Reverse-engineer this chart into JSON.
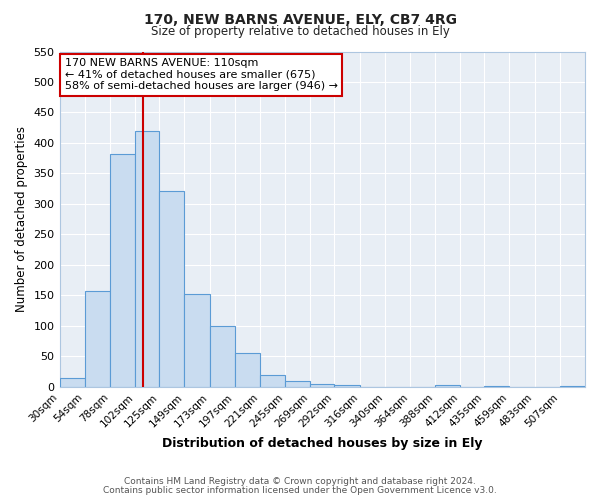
{
  "title": "170, NEW BARNS AVENUE, ELY, CB7 4RG",
  "subtitle": "Size of property relative to detached houses in Ely",
  "xlabel": "Distribution of detached houses by size in Ely",
  "ylabel": "Number of detached properties",
  "bin_labels": [
    "30sqm",
    "54sqm",
    "78sqm",
    "102sqm",
    "125sqm",
    "149sqm",
    "173sqm",
    "197sqm",
    "221sqm",
    "245sqm",
    "269sqm",
    "292sqm",
    "316sqm",
    "340sqm",
    "364sqm",
    "388sqm",
    "412sqm",
    "435sqm",
    "459sqm",
    "483sqm",
    "507sqm"
  ],
  "bar_heights": [
    15,
    157,
    382,
    420,
    322,
    153,
    100,
    55,
    20,
    9,
    5,
    4,
    0,
    0,
    0,
    3,
    0,
    2,
    0,
    0,
    2
  ],
  "bar_color": "#c9dcf0",
  "bar_edge_color": "#5b9bd5",
  "property_line_x": 110,
  "ylim": [
    0,
    550
  ],
  "yticks": [
    0,
    50,
    100,
    150,
    200,
    250,
    300,
    350,
    400,
    450,
    500,
    550
  ],
  "annotation_title": "170 NEW BARNS AVENUE: 110sqm",
  "annotation_line1": "← 41% of detached houses are smaller (675)",
  "annotation_line2": "58% of semi-detached houses are larger (946) →",
  "annotation_box_facecolor": "#ffffff",
  "annotation_box_edgecolor": "#cc0000",
  "property_line_color": "#cc0000",
  "footer1": "Contains HM Land Registry data © Crown copyright and database right 2024.",
  "footer2": "Contains public sector information licensed under the Open Government Licence v3.0.",
  "plot_bg_color": "#e8eef5",
  "fig_bg_color": "#ffffff",
  "grid_color": "#ffffff",
  "bin_edges": [
    30,
    54,
    78,
    102,
    125,
    149,
    173,
    197,
    221,
    245,
    269,
    292,
    316,
    340,
    364,
    388,
    412,
    435,
    459,
    483,
    507,
    531
  ]
}
